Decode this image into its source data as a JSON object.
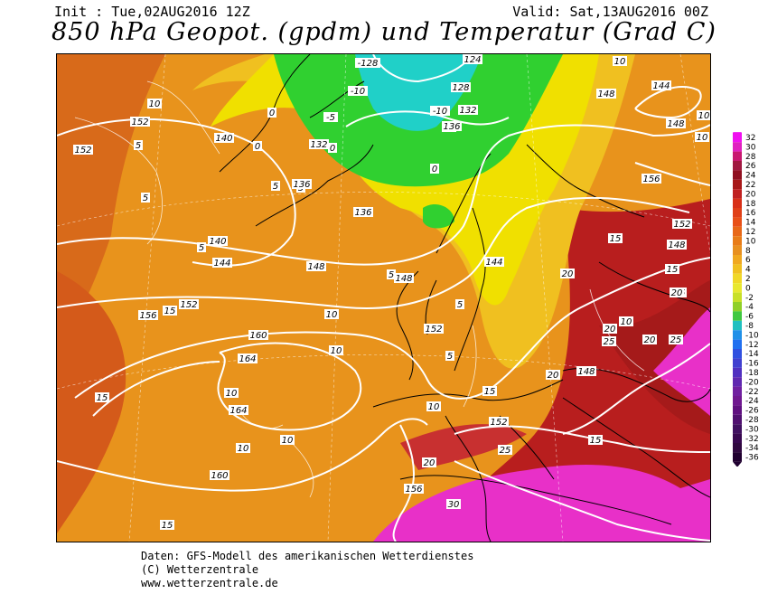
{
  "header": {
    "init": "Init : Tue,02AUG2016 12Z",
    "valid": "Valid: Sat,13AUG2016 00Z",
    "title": "850 hPa Geopot. (gpdm) und Temperatur (Grad C)"
  },
  "map": {
    "temperature_labels": [
      "0",
      "0",
      "0",
      "0",
      "-5",
      "-5",
      "-10",
      "-10",
      "5",
      "5",
      "5",
      "5",
      "5",
      "5",
      "5",
      "5",
      "10",
      "10",
      "10",
      "10",
      "10",
      "10",
      "10",
      "10",
      "10",
      "10",
      "15",
      "15",
      "15",
      "15",
      "15",
      "15",
      "15",
      "15",
      "20",
      "20",
      "20",
      "20",
      "20",
      "20",
      "25",
      "25",
      "25",
      "30",
      "10"
    ],
    "geopotential_labels": [
      "-128",
      "124",
      "128",
      "132",
      "136",
      "140",
      "132",
      "136",
      "136",
      "140",
      "144",
      "148",
      "152",
      "152",
      "152",
      "148",
      "144",
      "148",
      "156",
      "160",
      "164",
      "164",
      "160",
      "156",
      "152",
      "152",
      "148",
      "152",
      "148",
      "148",
      "144",
      "156"
    ],
    "colors": {
      "background_warm": "#e8931c",
      "hot_red": "#b81e1e",
      "very_hot_magenta": "#e830c8",
      "yellow": "#f0e000",
      "light_yellow": "#e8e83a",
      "green": "#30d030",
      "cyan": "#20d0c8",
      "contour_white": "#ffffff",
      "coast_black": "#000000"
    }
  },
  "scale": {
    "labels": [
      "32",
      "30",
      "28",
      "26",
      "24",
      "22",
      "20",
      "18",
      "16",
      "14",
      "12",
      "10",
      "8",
      "6",
      "4",
      "2",
      "0",
      "-2",
      "-4",
      "-6",
      "-8",
      "-10",
      "-12",
      "-14",
      "-16",
      "-18",
      "-20",
      "-22",
      "-24",
      "-26",
      "-28",
      "-30",
      "-32",
      "-34",
      "-36"
    ],
    "colors": [
      "#f010f0",
      "#e020c0",
      "#c81870",
      "#a01840",
      "#901020",
      "#a81818",
      "#c02020",
      "#d83018",
      "#e04018",
      "#e85018",
      "#e86818",
      "#e87c18",
      "#e89020",
      "#f0a820",
      "#f0c020",
      "#f0d828",
      "#e8e830",
      "#c8e028",
      "#90d028",
      "#40c840",
      "#20c0c0",
      "#2090e8",
      "#2070f0",
      "#3050e0",
      "#4040d0",
      "#5030c0",
      "#6028b0",
      "#7020a0",
      "#701890",
      "#601080",
      "#501070",
      "#401060",
      "#380850",
      "#300840",
      "#200030"
    ]
  },
  "credits": {
    "line1": "Daten: GFS-Modell des amerikanischen Wetterdienstes",
    "line2": "(C) Wetterzentrale",
    "line3": "www.wetterzentrale.de"
  }
}
